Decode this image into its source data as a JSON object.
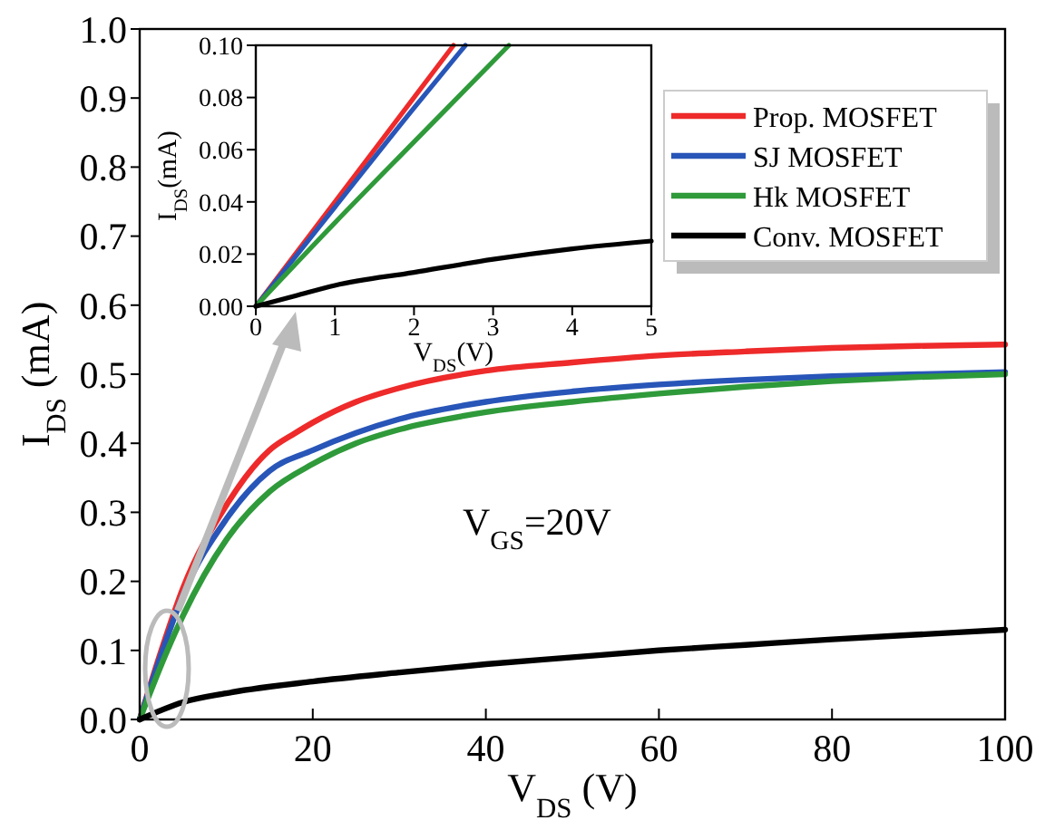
{
  "chart_data": [
    {
      "type": "line",
      "xlabel": "V$_{DS}$ (V)",
      "ylabel": "I$_{DS}$ (mA)",
      "annotations": [
        "V$_{GS}$=20V"
      ],
      "legend": "top right",
      "line_style": "solid",
      "xlim": [
        0,
        100
      ],
      "xticks": [
        0,
        20,
        40,
        60,
        80,
        100
      ],
      "ylim": [
        0,
        1
      ],
      "yticks": [
        {
          "value": 0,
          "label": "0.0"
        },
        0.1,
        0.2,
        0.3,
        0.4,
        0.5,
        0.6,
        0.7,
        0.8,
        0.9,
        {
          "value": 1,
          "label": "1.0"
        }
      ],
      "series": [
        {
          "name": "Prop. MOSFET",
          "color": "#ee2a2a",
          "x": [
            0,
            2.5,
            5,
            10,
            15,
            18,
            20,
            25,
            30,
            40,
            50,
            60,
            70,
            80,
            90,
            100
          ],
          "values": [
            0,
            0.1,
            0.19,
            0.31,
            0.39,
            0.415,
            0.43,
            0.46,
            0.48,
            0.505,
            0.517,
            0.527,
            0.533,
            0.538,
            0.541,
            0.543
          ]
        },
        {
          "name": "SJ MOSFET",
          "color": "#2855b8",
          "x": [
            0,
            2.65,
            5,
            10,
            15,
            20,
            25,
            30,
            40,
            50,
            60,
            70,
            80,
            90,
            100
          ],
          "values": [
            0,
            0.1,
            0.18,
            0.29,
            0.36,
            0.39,
            0.415,
            0.435,
            0.46,
            0.475,
            0.485,
            0.492,
            0.497,
            0.5,
            0.503
          ]
        },
        {
          "name": "Hk MOSFET",
          "color": "#2f9a3a",
          "x": [
            0,
            3.2,
            5,
            10,
            15,
            20,
            25,
            30,
            40,
            50,
            60,
            70,
            80,
            90,
            100
          ],
          "values": [
            0,
            0.1,
            0.15,
            0.26,
            0.33,
            0.37,
            0.4,
            0.42,
            0.445,
            0.46,
            0.472,
            0.482,
            0.49,
            0.496,
            0.5
          ]
        },
        {
          "name": "Conv. MOSFET",
          "color": "#000000",
          "x": [
            0,
            5,
            10,
            20,
            30,
            40,
            50,
            60,
            70,
            80,
            90,
            100
          ],
          "values": [
            0,
            0.025,
            0.038,
            0.055,
            0.068,
            0.08,
            0.09,
            0.1,
            0.108,
            0.116,
            0.123,
            0.13
          ]
        }
      ]
    },
    {
      "type": "line",
      "xlabel": "V$_{DS}$(V)",
      "ylabel": "I$_{DS}$(mA)",
      "line_style": "solid",
      "xlim": [
        0,
        5
      ],
      "xticks": [
        0,
        1,
        2,
        3,
        4,
        5
      ],
      "ylim": [
        0,
        0.1
      ],
      "yticks": [
        {
          "value": 0,
          "label": "0.00"
        },
        {
          "value": 0.02,
          "label": "0.02"
        },
        {
          "value": 0.04,
          "label": "0.04"
        },
        {
          "value": 0.06,
          "label": "0.06"
        },
        {
          "value": 0.08,
          "label": "0.08"
        },
        {
          "value": 0.1,
          "label": "0.10"
        }
      ],
      "series": [
        {
          "color": "#ee2a2a",
          "x": [
            0,
            1,
            2,
            2.5
          ],
          "values": [
            0,
            0.04,
            0.08,
            0.1
          ]
        },
        {
          "color": "#2855b8",
          "x": [
            0,
            1,
            2,
            2.65
          ],
          "values": [
            0,
            0.038,
            0.076,
            0.1
          ]
        },
        {
          "color": "#2f9a3a",
          "x": [
            0,
            1,
            2,
            3.2
          ],
          "values": [
            0,
            0.032,
            0.063,
            0.1
          ]
        },
        {
          "color": "#000000",
          "x": [
            0,
            0.5,
            1,
            2,
            3,
            4,
            5
          ],
          "values": [
            0,
            0.004,
            0.008,
            0.013,
            0.018,
            0.022,
            0.025
          ]
        }
      ]
    }
  ]
}
